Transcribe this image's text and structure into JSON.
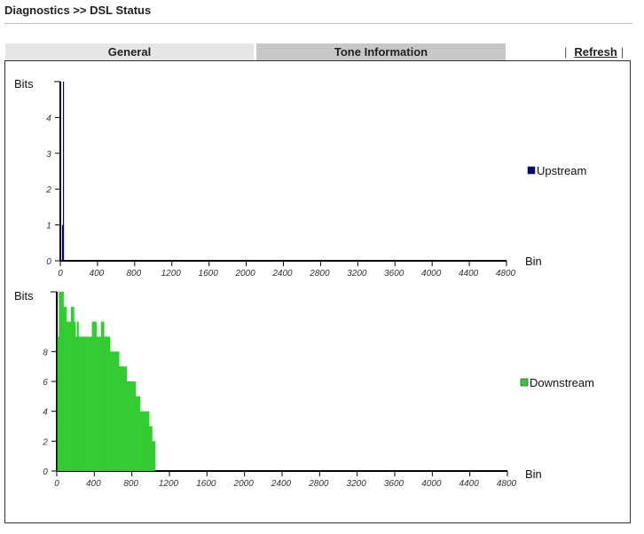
{
  "header": {
    "title": "Diagnostics >> DSL Status"
  },
  "tabs": [
    {
      "label": "General",
      "active": false
    },
    {
      "label": "Tone Information",
      "active": true
    }
  ],
  "refresh": {
    "sep_left": "|",
    "label": "Refresh",
    "sep_right": "|"
  },
  "colors": {
    "upstream": "#000080",
    "downstream": "#33cc33"
  },
  "chart_data": [
    {
      "type": "bar",
      "name": "upstream",
      "ylabel": "Bits",
      "xlabel": "Bin",
      "x_ticks": [
        0,
        400,
        800,
        1200,
        1600,
        2000,
        2400,
        2800,
        3200,
        3600,
        4000,
        4400,
        4800
      ],
      "y_ticks": [
        0,
        1,
        2,
        3,
        4
      ],
      "xlim": [
        0,
        4800
      ],
      "ylim": [
        0,
        5
      ],
      "legend": "Upstream",
      "legend_position": "right",
      "series": [
        {
          "name": "Upstream",
          "x": [
            14,
            24,
            34
          ],
          "y": [
            0,
            1,
            5
          ]
        }
      ]
    },
    {
      "type": "bar",
      "name": "downstream",
      "ylabel": "Bits",
      "xlabel": "Bin",
      "x_ticks": [
        0,
        400,
        800,
        1200,
        1600,
        2000,
        2400,
        2800,
        3200,
        3600,
        4000,
        4400,
        4800
      ],
      "y_ticks": [
        0,
        2,
        4,
        6,
        8
      ],
      "xlim": [
        0,
        4800
      ],
      "ylim": [
        0,
        12
      ],
      "legend": "Downstream",
      "legend_position": "right",
      "series": [
        {
          "name": "Downstream",
          "x": [
            16,
            32,
            48,
            64,
            80,
            96,
            112,
            128,
            144,
            160,
            176,
            192,
            208,
            224,
            240,
            256,
            272,
            288,
            304,
            320,
            336,
            352,
            368,
            384,
            400,
            416,
            432,
            448,
            464,
            480,
            496,
            512,
            528,
            544,
            560,
            576,
            592,
            608,
            624,
            640,
            656,
            672,
            688,
            704,
            720,
            736,
            752,
            768,
            784,
            800,
            816,
            832,
            848,
            864,
            880,
            896,
            912,
            928,
            944,
            960,
            976,
            992,
            1008,
            1024,
            1040
          ],
          "y": [
            9,
            12,
            12,
            12,
            11,
            11,
            10,
            10,
            10,
            11,
            11,
            10,
            9,
            10,
            9,
            9,
            9,
            9,
            9,
            9,
            9,
            9,
            9,
            10,
            10,
            10,
            9,
            9,
            9,
            10,
            10,
            9,
            9,
            9,
            9,
            8,
            8,
            8,
            8,
            8,
            8,
            7,
            7,
            7,
            7,
            7,
            6,
            6,
            6,
            6,
            6,
            6,
            5,
            5,
            5,
            4,
            4,
            4,
            4,
            4,
            4,
            3,
            3,
            2,
            2
          ]
        }
      ]
    }
  ]
}
